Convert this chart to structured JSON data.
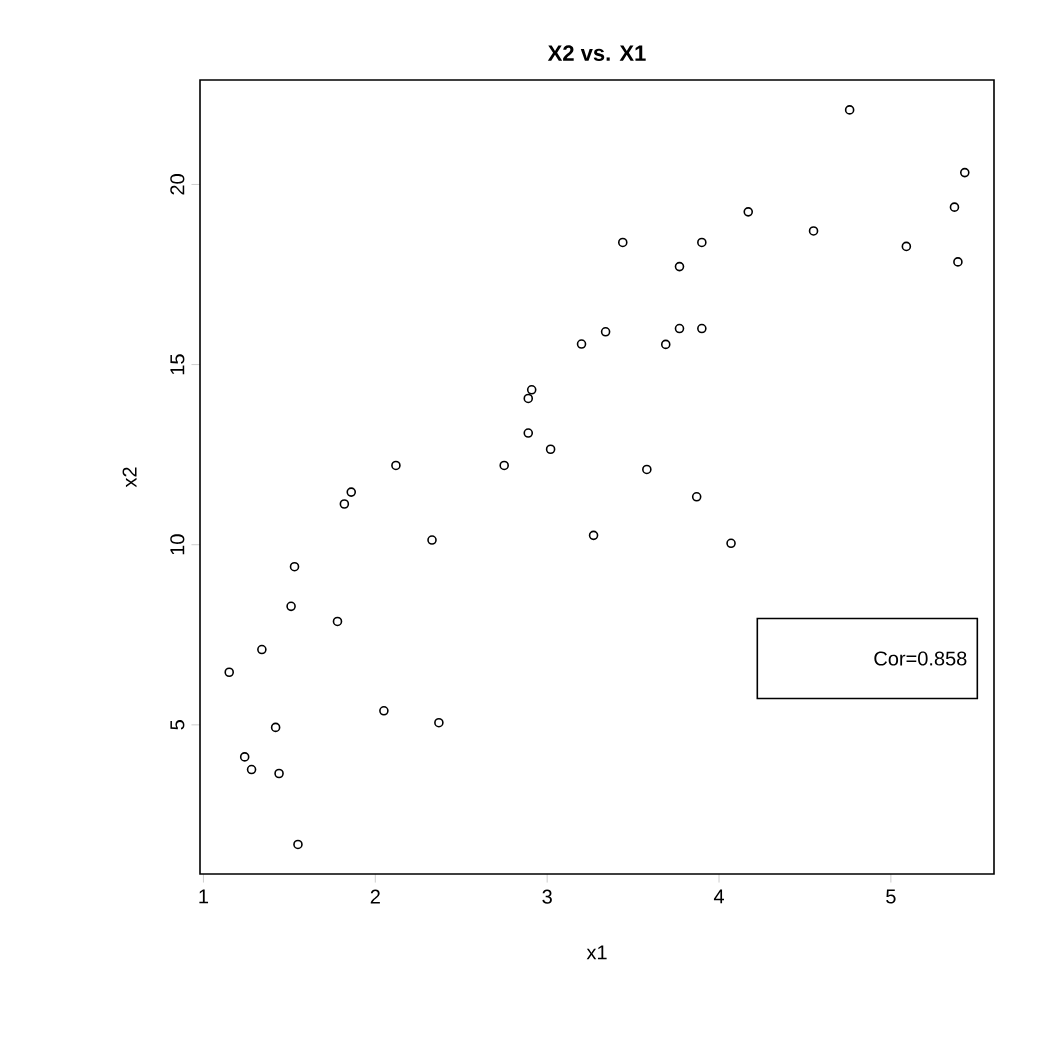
{
  "chart_data": {
    "type": "scatter",
    "title": "X2 vs. X1",
    "xlabel": "x1",
    "ylabel": "x2",
    "annotations": [
      "Cor=0.858"
    ],
    "marker": "circle",
    "grid": false,
    "xlim": [
      0.98,
      5.6
    ],
    "ylim": [
      0.86,
      22.9
    ],
    "xticks": [
      1,
      2,
      3,
      4,
      5
    ],
    "yticks": [
      5,
      10,
      15,
      20
    ],
    "series": [
      {
        "color": "#000000",
        "x": [
          3.2,
          2.91,
          2.89,
          2.89,
          3.02,
          2.12,
          2.75,
          1.86,
          1.82,
          2.33,
          1.53,
          1.51,
          1.78,
          1.34,
          1.15,
          2.05,
          2.37,
          1.42,
          1.24,
          1.28,
          1.44,
          1.55,
          4.76,
          5.43,
          5.37,
          4.17,
          4.55,
          3.44,
          3.9,
          5.09,
          5.39,
          3.77,
          3.34,
          3.77,
          3.9,
          3.69,
          3.58,
          3.27,
          3.87,
          4.07
        ],
        "values": [
          15.57,
          14.3,
          14.06,
          13.1,
          12.65,
          12.2,
          12.2,
          11.46,
          11.13,
          10.13,
          9.39,
          8.29,
          7.87,
          7.09,
          6.46,
          5.39,
          5.06,
          4.93,
          4.11,
          3.76,
          3.65,
          1.68,
          22.07,
          20.33,
          19.37,
          19.24,
          18.71,
          18.39,
          18.39,
          18.28,
          17.85,
          17.72,
          15.91,
          16.0,
          16.0,
          15.56,
          12.09,
          10.26,
          11.33,
          10.04
        ]
      }
    ]
  }
}
